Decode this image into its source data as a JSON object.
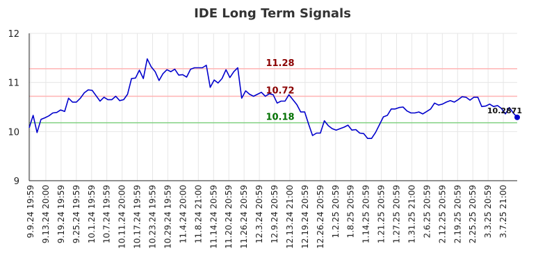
{
  "chart_data": {
    "type": "line",
    "title": "IDE Long Term Signals",
    "xlabel": "",
    "ylabel": "",
    "ylim": [
      9,
      12
    ],
    "yticks": [
      "9",
      "10",
      "11",
      "12"
    ],
    "xtick_labels": [
      "9.9.24 19:59",
      "9.13.24 20:00",
      "9.19.24 19:59",
      "9.25.24 19:59",
      "10.1.24 19:59",
      "10.7.24 19:59",
      "10.11.24 20:00",
      "10.17.24 19:59",
      "10.23.24 19:59",
      "10.29.24 19:59",
      "11.4.24 20:00",
      "11.8.24 21:00",
      "11.14.24 20:59",
      "11.20.24 20:59",
      "11.26.24 20:59",
      "12.3.24 20:59",
      "12.9.24 20:59",
      "12.13.24 21:00",
      "12.19.24 20:59",
      "12.26.24 20:59",
      "1.2.25 20:59",
      "1.8.25 20:59",
      "1.14.25 20:59",
      "1.21.25 20:59",
      "1.27.25 20:59",
      "1.31.25 21:00",
      "2.6.25 20:59",
      "2.12.25 20:59",
      "2.19.25 20:59",
      "2.25.25 20:59",
      "3.3.25 20:59",
      "3.7.25 21:00"
    ],
    "grid": true,
    "colors": {
      "line": "#0000cc",
      "upper": "#ffb3b3",
      "middle": "#ffb3b3",
      "lower": "#80d080",
      "upper_text": "#8b0000",
      "middle_text": "#8b0000",
      "lower_text": "#007000"
    },
    "reference_lines": [
      {
        "value": 11.28,
        "label": "11.28",
        "color": "#ffb3b3",
        "text_color": "#8b0000"
      },
      {
        "value": 10.72,
        "label": "10.72",
        "color": "#ffb3b3",
        "text_color": "#8b0000"
      },
      {
        "value": 10.18,
        "label": "10.18",
        "color": "#80d080",
        "text_color": "#007000"
      }
    ],
    "last_value_label": "10.2871",
    "series": [
      {
        "values": [
          10.08,
          10.33,
          9.98,
          10.25,
          10.28,
          10.32,
          10.38,
          10.39,
          10.44,
          10.41,
          10.68,
          10.6,
          10.6,
          10.68,
          10.79,
          10.85,
          10.84,
          10.73,
          10.62,
          10.7,
          10.65,
          10.65,
          10.72,
          10.63,
          10.65,
          10.76,
          11.08,
          11.09,
          11.25,
          11.08,
          11.48,
          11.32,
          11.22,
          11.04,
          11.18,
          11.26,
          11.22,
          11.27,
          11.15,
          11.16,
          11.11,
          11.27,
          11.3,
          11.3,
          11.3,
          11.35,
          10.9,
          11.05,
          10.99,
          11.08,
          11.26,
          11.1,
          11.22,
          11.3,
          10.68,
          10.83,
          10.76,
          10.72,
          10.76,
          10.8,
          10.72,
          10.77,
          10.75,
          10.58,
          10.62,
          10.62,
          10.75,
          10.65,
          10.55,
          10.4,
          10.4,
          10.15,
          9.92,
          9.97,
          9.97,
          10.22,
          10.12,
          10.06,
          10.03,
          10.06,
          10.09,
          10.13,
          10.03,
          10.04,
          9.97,
          9.96,
          9.86,
          9.86,
          9.98,
          10.14,
          10.3,
          10.33,
          10.46,
          10.46,
          10.49,
          10.5,
          10.42,
          10.38,
          10.38,
          10.4,
          10.36,
          10.41,
          10.46,
          10.58,
          10.54,
          10.56,
          10.6,
          10.63,
          10.6,
          10.65,
          10.71,
          10.7,
          10.64,
          10.7,
          10.7,
          10.51,
          10.52,
          10.56,
          10.51,
          10.53,
          10.47,
          10.36,
          10.49,
          10.38,
          10.29
        ]
      }
    ]
  }
}
